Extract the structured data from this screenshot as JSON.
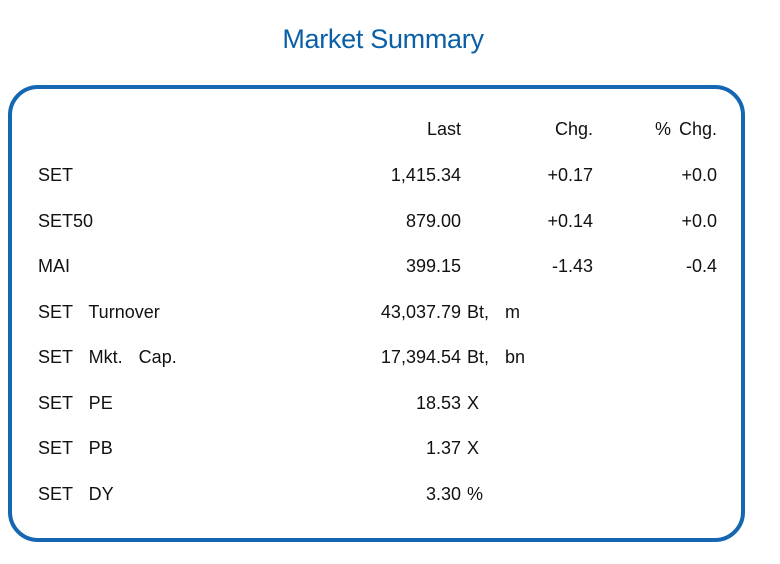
{
  "title": "Market Summary",
  "headers": {
    "last": "Last",
    "chg": "Chg.",
    "pct_chg": "% Chg."
  },
  "rows": [
    {
      "label": "SET",
      "last": "1,415.34",
      "chg": "+0.17",
      "pct_chg": "+0.0"
    },
    {
      "label": "SET50",
      "last": "879.00",
      "chg": "+0.14",
      "pct_chg": "+0.0"
    },
    {
      "label": "MAI",
      "last": "399.15",
      "chg": "-1.43",
      "pct_chg": "-0.4"
    },
    {
      "label": "SET  Turnover",
      "last": "43,037.79",
      "unit": "Bt,  m"
    },
    {
      "label": "SET  Mkt.  Cap.",
      "last": "17,394.54",
      "unit": "Bt,  bn"
    },
    {
      "label": "SET  PE",
      "last": "18.53",
      "unit": "X"
    },
    {
      "label": "SET  PB",
      "last": "1.37",
      "unit": "X"
    },
    {
      "label": "SET  DY",
      "last": "3.30",
      "unit": "%"
    }
  ],
  "colors": {
    "title": "#0a5fa6",
    "border": "#1467b0"
  }
}
